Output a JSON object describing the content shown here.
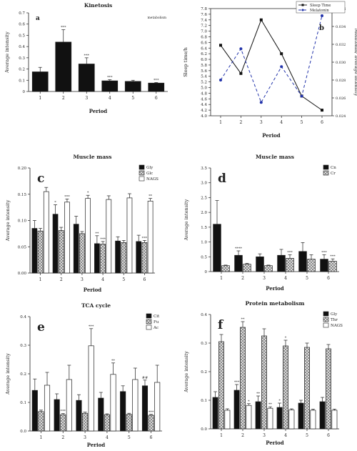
{
  "chart_data": [
    {
      "id": "a",
      "type": "bar",
      "panel_letter": "a",
      "title": "Kinetosis",
      "corner_note": "metabolism",
      "xlabel": "Period",
      "ylabel": "Average intensity",
      "categories": [
        "1",
        "2",
        "3",
        "4",
        "5",
        "6"
      ],
      "ylim": [
        0,
        0.7
      ],
      "yticks": [
        "0",
        "0.1",
        "0.2",
        "0.3",
        "0.4",
        "0.5",
        "0.6",
        "0.7"
      ],
      "series": [
        {
          "values": [
            0.175,
            0.44,
            0.245,
            0.095,
            0.09,
            0.075
          ],
          "errors": [
            0.04,
            0.11,
            0.055,
            0.01,
            0.01,
            0.005
          ],
          "sig": [
            "",
            "***",
            "***",
            "***",
            "",
            "***"
          ],
          "fill": "#111111",
          "pattern": "solid"
        }
      ]
    },
    {
      "id": "b",
      "type": "line",
      "panel_letter": "b",
      "xlabel": "Period",
      "ylabel": "Sleep time/h",
      "y2label": "Melatonin/ average intensity",
      "categories": [
        "1",
        "2",
        "3",
        "4",
        "5",
        "6"
      ],
      "ylim": [
        4.0,
        7.8
      ],
      "yticks": [
        "4.0",
        "4.2",
        "4.4",
        "4.6",
        "4.8",
        "5.0",
        "5.2",
        "5.4",
        "5.6",
        "5.8",
        "6.0",
        "6.2",
        "6.4",
        "6.6",
        "6.8",
        "7.0",
        "7.2",
        "7.4",
        "7.6",
        "7.8"
      ],
      "y2lim": [
        0.024,
        0.036
      ],
      "y2ticks": [
        "0.024",
        "0.026",
        "0.028",
        "0.030",
        "0.032",
        "0.034",
        "0.036"
      ],
      "series": [
        {
          "name": "Sleep Time",
          "axis": "left",
          "values": [
            6.5,
            5.5,
            7.4,
            6.2,
            4.7,
            4.2
          ],
          "color": "#111111",
          "dash": ""
        },
        {
          "name": "Melatonin",
          "axis": "right",
          "values": [
            0.028,
            0.0315,
            0.0255,
            0.0295,
            0.0262,
            0.0352
          ],
          "color": "#2233aa",
          "dash": "4,3"
        }
      ]
    },
    {
      "id": "c",
      "type": "bar",
      "panel_letter": "c",
      "title": "Muscle mass",
      "xlabel": "Period",
      "ylabel": "Average intensity",
      "categories": [
        "1",
        "2",
        "3",
        "4",
        "5",
        "6"
      ],
      "ylim": [
        0,
        0.2
      ],
      "yticks": [
        "0.00",
        "0.05",
        "0.10",
        "0.15",
        "0.20"
      ],
      "series": [
        {
          "name": "Gly",
          "values": [
            0.085,
            0.112,
            0.093,
            0.056,
            0.061,
            0.06
          ],
          "errors": [
            0.015,
            0.018,
            0.015,
            0.015,
            0.008,
            0.012
          ],
          "sig": [
            "",
            "*",
            "",
            "**",
            "",
            ""
          ],
          "fill": "#111111",
          "pattern": "solid"
        },
        {
          "name": "Glc",
          "values": [
            0.08,
            0.081,
            0.075,
            0.055,
            0.058,
            0.058
          ],
          "errors": [
            0.005,
            0.006,
            0.004,
            0.005,
            0.004,
            0.004
          ],
          "sig": [
            "",
            "",
            "",
            "***",
            "",
            "***"
          ],
          "fill": "#cccccc",
          "pattern": "cross"
        },
        {
          "name": "NAGS",
          "values": [
            0.155,
            0.135,
            0.142,
            0.14,
            0.143,
            0.137
          ],
          "errors": [
            0.008,
            0.006,
            0.006,
            0.007,
            0.008,
            0.005
          ],
          "sig": [
            "",
            "***",
            "*",
            "",
            "",
            "**"
          ],
          "fill": "#ffffff",
          "pattern": "none"
        }
      ]
    },
    {
      "id": "d",
      "type": "bar",
      "panel_letter": "d",
      "title": "Muscle mass",
      "xlabel": "Period",
      "ylabel": "Average intensity",
      "categories": [
        "1",
        "2",
        "3",
        "4",
        "5",
        "6"
      ],
      "ylim": [
        0,
        3.5
      ],
      "yticks": [
        "0",
        "0.5",
        "1.0",
        "1.5",
        "2.0",
        "2.5",
        "3.0",
        "3.5"
      ],
      "series": [
        {
          "name": "Cn",
          "values": [
            1.6,
            0.55,
            0.5,
            0.55,
            0.68,
            0.42
          ],
          "errors": [
            0.8,
            0.15,
            0.1,
            0.2,
            0.3,
            0.15
          ],
          "sig": [
            "",
            "****",
            "",
            "",
            "",
            "***"
          ],
          "fill": "#111111",
          "pattern": "solid"
        },
        {
          "name": "Cr",
          "values": [
            0.2,
            0.25,
            0.2,
            0.45,
            0.42,
            0.35
          ],
          "errors": [
            0.02,
            0.03,
            0.02,
            0.12,
            0.15,
            0.08
          ],
          "sig": [
            "",
            "",
            "",
            "***",
            "",
            "***"
          ],
          "fill": "#dddddd",
          "pattern": "cross"
        }
      ]
    },
    {
      "id": "e",
      "type": "bar",
      "panel_letter": "e",
      "title": "TCA cycle",
      "xlabel": "Period",
      "ylabel": "Average intensity",
      "categories": [
        "1",
        "2",
        "3",
        "4",
        "5",
        "6"
      ],
      "ylim": [
        0,
        0.4
      ],
      "yticks": [
        "0.0",
        "0.1",
        "0.2",
        "0.3",
        "0.4"
      ],
      "series": [
        {
          "name": "Cit",
          "values": [
            0.142,
            0.11,
            0.107,
            0.115,
            0.138,
            0.158
          ],
          "errors": [
            0.04,
            0.02,
            0.02,
            0.02,
            0.02,
            0.02
          ],
          "sig": [
            "",
            "",
            "",
            "",
            "",
            "##"
          ],
          "fill": "#111111",
          "pattern": "solid"
        },
        {
          "name": "Fu",
          "values": [
            0.068,
            0.057,
            0.062,
            0.057,
            0.058,
            0.055
          ],
          "errors": [
            0.005,
            0.004,
            0.004,
            0.003,
            0.004,
            0.003
          ],
          "sig": [
            "",
            "***",
            "",
            "",
            "",
            "***"
          ],
          "fill": "#dddddd",
          "pattern": "cross"
        },
        {
          "name": "Ac",
          "values": [
            0.16,
            0.18,
            0.298,
            0.198,
            0.18,
            0.17
          ],
          "errors": [
            0.045,
            0.05,
            0.06,
            0.04,
            0.04,
            0.06
          ],
          "sig": [
            "",
            "",
            "***",
            "**",
            "",
            ""
          ],
          "fill": "#ffffff",
          "pattern": "none"
        }
      ]
    },
    {
      "id": "f",
      "type": "bar",
      "panel_letter": "f",
      "title": "Protein metabolism",
      "xlabel": "Period",
      "ylabel": "Average intensity",
      "categories": [
        "1",
        "2",
        "3",
        "4",
        "5",
        "6"
      ],
      "ylim": [
        0,
        0.4
      ],
      "yticks": [
        "0.0",
        "0.1",
        "0.2",
        "0.3",
        "0.4"
      ],
      "series": [
        {
          "name": "Gly",
          "values": [
            0.11,
            0.135,
            0.095,
            0.075,
            0.09,
            0.095
          ],
          "errors": [
            0.02,
            0.02,
            0.02,
            0.015,
            0.01,
            0.015
          ],
          "sig": [
            "",
            "***",
            "**",
            "*",
            "",
            ""
          ],
          "fill": "#111111",
          "pattern": "solid"
        },
        {
          "name": "Thr",
          "values": [
            0.305,
            0.355,
            0.325,
            0.29,
            0.285,
            0.28
          ],
          "errors": [
            0.025,
            0.02,
            0.025,
            0.02,
            0.015,
            0.015
          ],
          "sig": [
            "",
            "**",
            "",
            "*",
            "",
            ""
          ],
          "fill": "#cccccc",
          "pattern": "cross"
        },
        {
          "name": "NAGS",
          "values": [
            0.065,
            0.082,
            0.072,
            0.066,
            0.065,
            0.065
          ],
          "errors": [
            0.005,
            0.006,
            0.005,
            0.004,
            0.004,
            0.004
          ],
          "sig": [
            "",
            "*",
            "**",
            "",
            "",
            ""
          ],
          "fill": "#ffffff",
          "pattern": "none"
        }
      ]
    }
  ]
}
